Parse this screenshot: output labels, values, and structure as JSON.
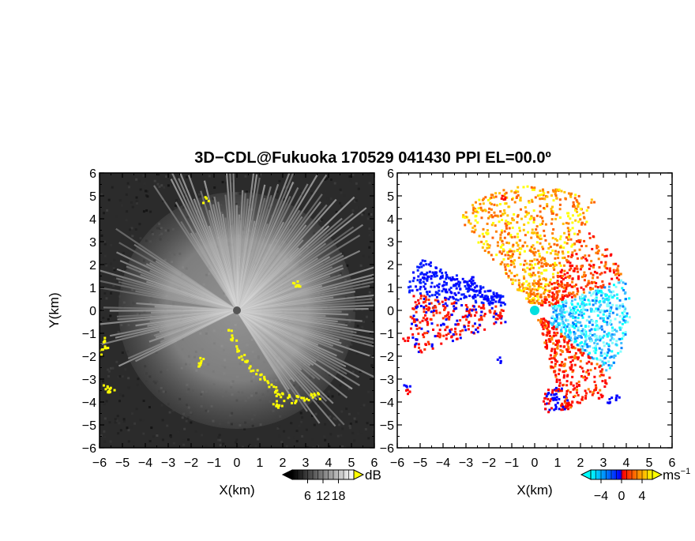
{
  "title": "3D−CDL@Fukuoka 170529 041430 PPI EL=00.0º",
  "chart_data": [
    {
      "type": "heatmap",
      "panel": "left",
      "variable_unit": "dB",
      "xlabel": "X(km)",
      "ylabel": "Y(km)",
      "xlim": [
        -6,
        6
      ],
      "ylim": [
        -6,
        6
      ],
      "xticks": [
        -6,
        -5,
        -4,
        -3,
        -2,
        -1,
        0,
        1,
        2,
        3,
        4,
        5,
        6
      ],
      "yticks": [
        -6,
        -5,
        -4,
        -3,
        -2,
        -1,
        0,
        1,
        2,
        3,
        4,
        5,
        6
      ],
      "xtick_labels": [
        "−6",
        "−5",
        "−4",
        "−3",
        "−2",
        "−1",
        "0",
        "1",
        "2",
        "3",
        "4",
        "5",
        "6"
      ],
      "ytick_labels": [
        "−6",
        "−5",
        "−4",
        "−3",
        "−2",
        "−1",
        "0",
        "1",
        "2",
        "3",
        "4",
        "5",
        "6"
      ],
      "colorbar": {
        "unit": "dB",
        "ticks": [
          6,
          12,
          18
        ],
        "tick_labels": [
          "6",
          "12",
          "18"
        ],
        "range": [
          0,
          24
        ],
        "colormap": [
          "#000000",
          "#ffffff"
        ],
        "over_color": "#ffff00"
      },
      "background_color": "#2b2b2b",
      "flag_color": "#ffff00"
    },
    {
      "type": "heatmap",
      "panel": "right",
      "variable_unit": "ms−1",
      "xlabel": "X(km)",
      "ylabel": "",
      "xlim": [
        -6,
        6
      ],
      "ylim": [
        -6,
        6
      ],
      "xticks": [
        -6,
        -5,
        -4,
        -3,
        -2,
        -1,
        0,
        1,
        2,
        3,
        4,
        5,
        6
      ],
      "yticks": [
        -6,
        -5,
        -4,
        -3,
        -2,
        -1,
        0,
        1,
        2,
        3,
        4,
        5,
        6
      ],
      "xtick_labels": [
        "−6",
        "−5",
        "−4",
        "−3",
        "−2",
        "−1",
        "0",
        "1",
        "2",
        "3",
        "4",
        "5",
        "6"
      ],
      "ytick_labels": [
        "−6",
        "−5",
        "−4",
        "−3",
        "−2",
        "−1",
        "0",
        "1",
        "2",
        "3",
        "4",
        "5",
        "6"
      ],
      "colorbar": {
        "unit": "ms",
        "unit_exponent": "−1",
        "ticks": [
          -4,
          0,
          4
        ],
        "tick_labels": [
          "−4",
          "0",
          "4"
        ],
        "range": [
          -6,
          6
        ],
        "colormap": [
          "#00ffff",
          "#0080ff",
          "#0000ff",
          "#ff0000",
          "#ff8000",
          "#ffff00"
        ]
      },
      "background_color": "#ffffff",
      "marker_color": "#00e0e0"
    }
  ]
}
